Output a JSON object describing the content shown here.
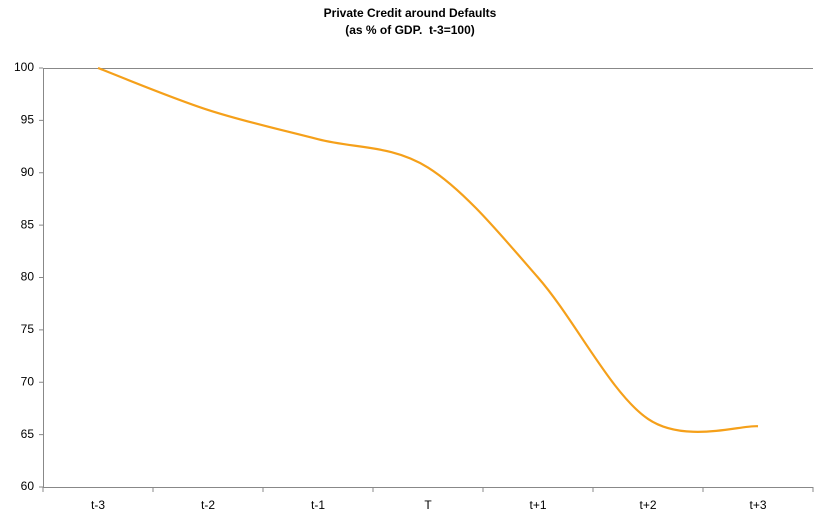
{
  "chart_data": {
    "type": "line",
    "title": "Private Credit around Defaults",
    "subtitle": "(as % of GDP.  t-3=100)",
    "categories": [
      "t-3",
      "t-2",
      "t-1",
      "T",
      "t+1",
      "t+2",
      "t+3"
    ],
    "values": [
      100,
      96,
      93.2,
      90.5,
      80,
      66.5,
      65.8
    ],
    "color": "#f5a01a",
    "ylim": [
      60,
      100
    ],
    "yticks": [
      60,
      65,
      70,
      75,
      80,
      85,
      90,
      95,
      100
    ],
    "smooth": true
  }
}
